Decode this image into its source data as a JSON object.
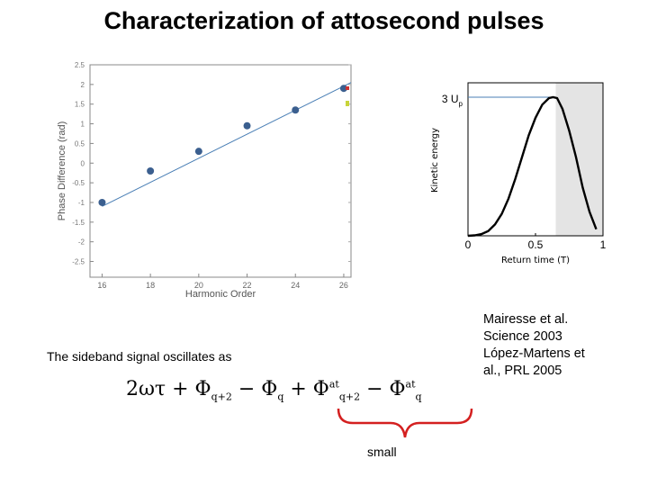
{
  "slide": {
    "title": "Characterization of attosecond pulses",
    "sideband_text": "The sideband signal oscillates as",
    "small_label": "small",
    "references": [
      "Mairesse  et al.",
      "Science 2003",
      "López-Martens et",
      "al., PRL 2005"
    ]
  },
  "formula": {
    "lead": "2ωτ + Φ",
    "sub1": "q+2",
    "op1": " − Φ",
    "sub2": "q",
    "op2": " + Φ",
    "sup3": "at",
    "sub3": "q+2",
    "op3": " − Φ",
    "sup4": "at",
    "sub4": "q"
  },
  "chart_data": [
    {
      "type": "scatter",
      "title": "",
      "xlabel": "Harmonic Order",
      "ylabel": "Phase Difference (rad)",
      "xlim": [
        15.5,
        26.3
      ],
      "ylim": [
        -2.9,
        2.5
      ],
      "xticks": [
        16,
        18,
        20,
        22,
        24,
        26
      ],
      "yticks": [
        2.5,
        2,
        1.5,
        1,
        0.5,
        0,
        -0.5,
        -1,
        -1.5,
        -2,
        -2.5
      ],
      "grid": false,
      "series": [
        {
          "x": [
            16,
            18,
            20,
            22,
            24,
            26
          ],
          "y": [
            -1.0,
            -0.2,
            0.3,
            0.95,
            1.35,
            1.9
          ]
        }
      ],
      "fit_line": {
        "x": [
          16,
          26.3
        ],
        "y": [
          -1.1,
          2.05
        ]
      },
      "colors": {
        "points": "#3b5f8f",
        "line": "#4a7fb5",
        "axis": "#888888"
      }
    },
    {
      "type": "line",
      "title": "",
      "xlabel": "Return time (T)",
      "ylabel": "Kinetic energy",
      "xlim": [
        0,
        1
      ],
      "ylim": [
        0,
        3.5
      ],
      "xticks": [
        0,
        0.5,
        1
      ],
      "xticklabels": [
        "0",
        "0.5",
        "1"
      ],
      "annotation": {
        "text": "3 U",
        "sub": "p",
        "y": 3.17
      },
      "shaded_region": [
        0.65,
        1.0
      ],
      "series": [
        {
          "x": [
            0,
            0.05,
            0.1,
            0.15,
            0.2,
            0.25,
            0.3,
            0.35,
            0.4,
            0.45,
            0.5,
            0.55,
            0.6,
            0.63,
            0.66,
            0.7,
            0.75,
            0.8,
            0.85,
            0.9,
            0.95
          ],
          "y": [
            0,
            0.01,
            0.04,
            0.11,
            0.26,
            0.5,
            0.85,
            1.3,
            1.8,
            2.3,
            2.7,
            3.0,
            3.15,
            3.17,
            3.15,
            2.9,
            2.4,
            1.8,
            1.1,
            0.55,
            0.15
          ]
        }
      ],
      "colors": {
        "curve": "#000000",
        "cutoff_line": "#4a7fb5",
        "shade": "#e4e4e4"
      }
    }
  ]
}
